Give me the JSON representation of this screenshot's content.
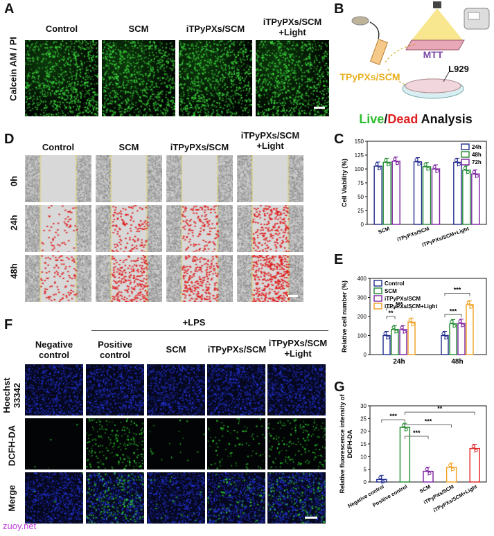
{
  "panels": {
    "A": {
      "letter": "A",
      "ylabel": "Calcein AM / PI",
      "columns": [
        "Control",
        "SCM",
        "iTPyPXs/SCM",
        "iTPyPXs/SCM\n+Light"
      ]
    },
    "B": {
      "letter": "B",
      "labels": {
        "mtt": "MTT",
        "np": "iTPyPXs/SCM",
        "cell": "L929"
      },
      "title_live": "Live",
      "title_slash": "/",
      "title_dead": "Dead",
      "title_rest": " Analysis"
    },
    "C": {
      "letter": "C"
    },
    "D": {
      "letter": "D",
      "columns": [
        "Control",
        "SCM",
        "iTPyPXs/SCM",
        "iTPyPXs/SCM\n+Light"
      ],
      "rows": [
        "0h",
        "24h",
        "48h"
      ]
    },
    "E": {
      "letter": "E"
    },
    "F": {
      "letter": "F",
      "lps": "+LPS",
      "columns": [
        "Negative\ncontrol",
        "Positive\ncontrol",
        "SCM",
        "iTPyPXs/SCM",
        "iTPyPXs/SCM\n+Light"
      ],
      "rows": [
        "Hoechst\n33342",
        "DCFH-DA",
        "Merge"
      ]
    },
    "G": {
      "letter": "G"
    }
  },
  "watermark": "zuoy.net",
  "chart_data": [
    {
      "id": "C",
      "type": "bar",
      "ylabel": "Cell Viability (%)",
      "ylim": [
        0,
        150
      ],
      "yticks": [
        0,
        25,
        50,
        75,
        100,
        125,
        150
      ],
      "categories": [
        "SCM",
        "iTPyPXs/SCM",
        "iTPyPXs/SCM+Light"
      ],
      "legend_position": "top-right",
      "series": [
        {
          "name": "24h",
          "color": "#1f2a8c",
          "values": [
            105,
            113,
            112
          ]
        },
        {
          "name": "48h",
          "color": "#1e8a2e",
          "values": [
            112,
            104,
            98
          ]
        },
        {
          "name": "72h",
          "color": "#7a1fa0",
          "values": [
            114,
            100,
            91
          ]
        }
      ]
    },
    {
      "id": "E",
      "type": "bar",
      "ylabel": "Relative cell number (%)",
      "ylim": [
        0,
        400
      ],
      "yticks": [
        0,
        100,
        200,
        300,
        400
      ],
      "categories": [
        "24h",
        "48h"
      ],
      "legend_position": "top-left",
      "significance": [
        "**",
        "***",
        "***",
        "***"
      ],
      "series": [
        {
          "name": "Control",
          "color": "#1f2a8c",
          "values": [
            100,
            100
          ]
        },
        {
          "name": "SCM",
          "color": "#1e8a2e",
          "values": [
            132,
            162
          ]
        },
        {
          "name": "iTPyPXs/SCM",
          "color": "#7a1fa0",
          "values": [
            131,
            164
          ]
        },
        {
          "name": "iTPyPXs/SCM+Light",
          "color": "#f0a020",
          "values": [
            170,
            262
          ]
        }
      ]
    },
    {
      "id": "G",
      "type": "bar",
      "ylabel": "Relative fluorescence intensity of\nDCFH-DA",
      "ylim": [
        0,
        30
      ],
      "yticks": [
        0,
        5,
        10,
        15,
        20,
        25,
        30
      ],
      "categories": [
        "Negative control",
        "Positive control",
        "SCM",
        "iTPyPXs/SCM",
        "iTPyPXs/SCM+Light"
      ],
      "significance": [
        "***",
        "***",
        "***",
        "**"
      ],
      "series": [
        {
          "colors": [
            "#1f2a8c",
            "#1e8a2e",
            "#7a1fa0",
            "#f0a020",
            "#e02020"
          ],
          "values": [
            1.0,
            21.5,
            4.2,
            5.8,
            13.2
          ]
        }
      ]
    }
  ]
}
